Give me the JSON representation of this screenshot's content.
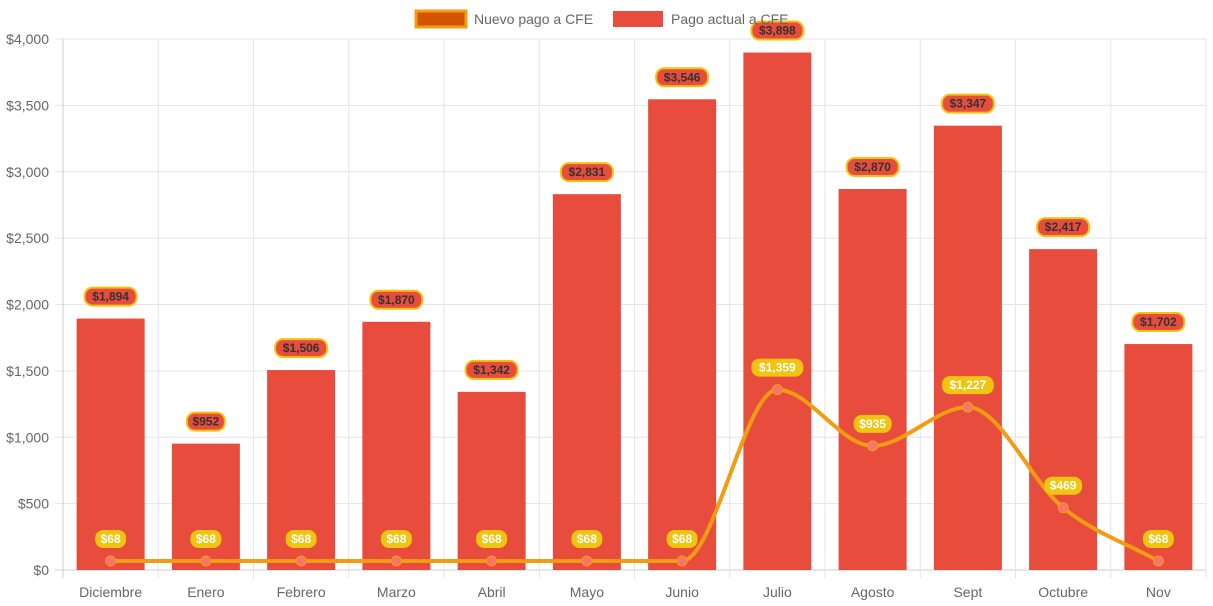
{
  "chart_data": {
    "type": "bar",
    "title": "",
    "xlabel": "",
    "ylabel": "",
    "ylim": [
      0,
      4000
    ],
    "yticks": [
      0,
      500,
      1000,
      1500,
      2000,
      2500,
      3000,
      3500,
      4000
    ],
    "ytick_labels": [
      "$0",
      "$500",
      "$1,000",
      "$1,500",
      "$2,000",
      "$2,500",
      "$3,000",
      "$3,500",
      "$4,000"
    ],
    "grid": true,
    "legend_position": "top",
    "categories": [
      "Diciembre",
      "Enero",
      "Febrero",
      "Marzo",
      "Abril",
      "Mayo",
      "Junio",
      "Julio",
      "Agosto",
      "Sept",
      "Octubre",
      "Nov"
    ],
    "series": [
      {
        "name": "Nuevo pago a CFE",
        "type": "line",
        "color": "#f39c12",
        "legend_fill": "#d35400",
        "point_color": "#f8756e",
        "label_bg": "#f1c40f",
        "label_color": "#ffffff",
        "values": [
          68,
          68,
          68,
          68,
          68,
          68,
          68,
          1359,
          935,
          1227,
          469,
          68
        ],
        "labels": [
          "$68",
          "$68",
          "$68",
          "$68",
          "$68",
          "$68",
          "$68",
          "$1,359",
          "$935",
          "$1,227",
          "$469",
          "$68"
        ]
      },
      {
        "name": "Pago actual a CFE",
        "type": "bar",
        "color": "#e74c3c",
        "label_bg": "#e74c3c",
        "label_border": "#f1c40f",
        "label_color": "#333333",
        "values": [
          1894,
          952,
          1506,
          1870,
          1342,
          2831,
          3546,
          3898,
          2870,
          3347,
          2417,
          1702
        ],
        "labels": [
          "$1,894",
          "$952",
          "$1,506",
          "$1,870",
          "$1,342",
          "$2,831",
          "$3,546",
          "$3,898",
          "$2,870",
          "$3,347",
          "$2,417",
          "$1,702"
        ]
      }
    ]
  }
}
